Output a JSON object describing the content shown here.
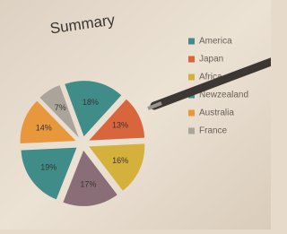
{
  "chart_data": {
    "type": "pie",
    "title": "Summary",
    "categories": [
      "America",
      "Japan",
      "Africa",
      null,
      "Newzealand",
      "Australia",
      "France"
    ],
    "values": [
      18,
      13,
      16,
      17,
      19,
      14,
      7
    ],
    "value_labels": [
      "18%",
      "13%",
      "16%",
      "17%",
      "19%",
      "14%",
      "7%"
    ],
    "colors": [
      "#3f8c88",
      "#d8653c",
      "#d4b03c",
      "#8a6e77",
      "#3f8c88",
      "#e8973c",
      "#aaa49b"
    ],
    "legend": "right"
  }
}
